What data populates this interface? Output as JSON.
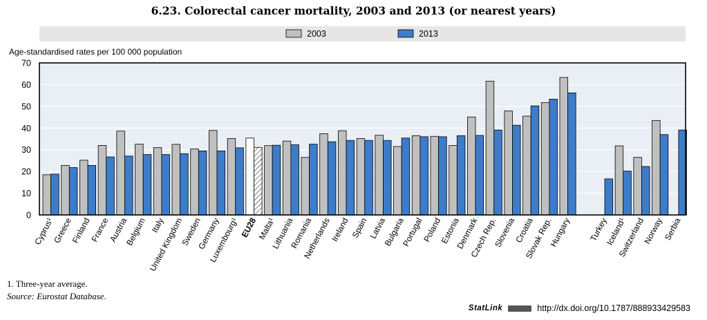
{
  "title": "6.23.  Colorectal cancer mortality, 2003 and 2013 (or nearest years)",
  "footnote": "1.  Three-year average.",
  "source": "Source:  Eurostat Database.",
  "statlink": {
    "label": "StatLink",
    "url": "http://dx.doi.org/10.1787/888933429583"
  },
  "colors": {
    "series_2003": "#c0c0c0",
    "series_2013": "#3d7cc9",
    "legend_band": "#e6e6e6",
    "plot_bg": "#eaeff5"
  },
  "chart_data": {
    "type": "bar",
    "ylabel": "Age-standardised rates per 100 000 population",
    "ylim": [
      0,
      70
    ],
    "yticks": [
      0,
      10,
      20,
      30,
      40,
      50,
      60,
      70
    ],
    "legend_position": "top",
    "categories": [
      "Cyprus¹",
      "Greece",
      "Finland",
      "France",
      "Austria",
      "Belgium",
      "Italy",
      "United Kingdom",
      "Sweden",
      "Germany",
      "Luxembourg¹",
      "EU28",
      "Malta¹",
      "Lithuania",
      "Romania",
      "Netherlands",
      "Ireland",
      "Spain",
      "Latvia",
      "Bulgaria",
      "Portugal",
      "Poland",
      "Estonia",
      "Denmark",
      "Czech Rep.",
      "Slovenia",
      "Croatia",
      "Slovak Rep.",
      "Hungary",
      "",
      "Turkey",
      "Iceland¹",
      "Switzerland",
      "Norway",
      "Serbia"
    ],
    "highlight": "EU28",
    "series": [
      {
        "name": "2003",
        "values": [
          18.5,
          22.8,
          25.2,
          32.0,
          38.6,
          32.6,
          31.0,
          32.5,
          30.4,
          38.9,
          35.2,
          35.4,
          31.9,
          34.0,
          26.5,
          37.4,
          38.8,
          35.2,
          36.7,
          31.5,
          36.5,
          36.2,
          32.0,
          45.1,
          61.6,
          47.9,
          45.5,
          51.7,
          63.3,
          null,
          null,
          31.8,
          26.5,
          43.5,
          null
        ]
      },
      {
        "name": "2013",
        "values": [
          18.8,
          21.8,
          22.8,
          26.7,
          27.1,
          27.8,
          27.8,
          28.2,
          29.5,
          29.5,
          30.9,
          31.1,
          32.1,
          32.3,
          32.6,
          33.7,
          34.3,
          34.3,
          34.3,
          35.4,
          36.0,
          36.0,
          36.5,
          36.6,
          39.1,
          41.3,
          50.2,
          53.3,
          56.2,
          null,
          16.6,
          20.2,
          22.3,
          37.0,
          39.1
        ]
      }
    ]
  }
}
